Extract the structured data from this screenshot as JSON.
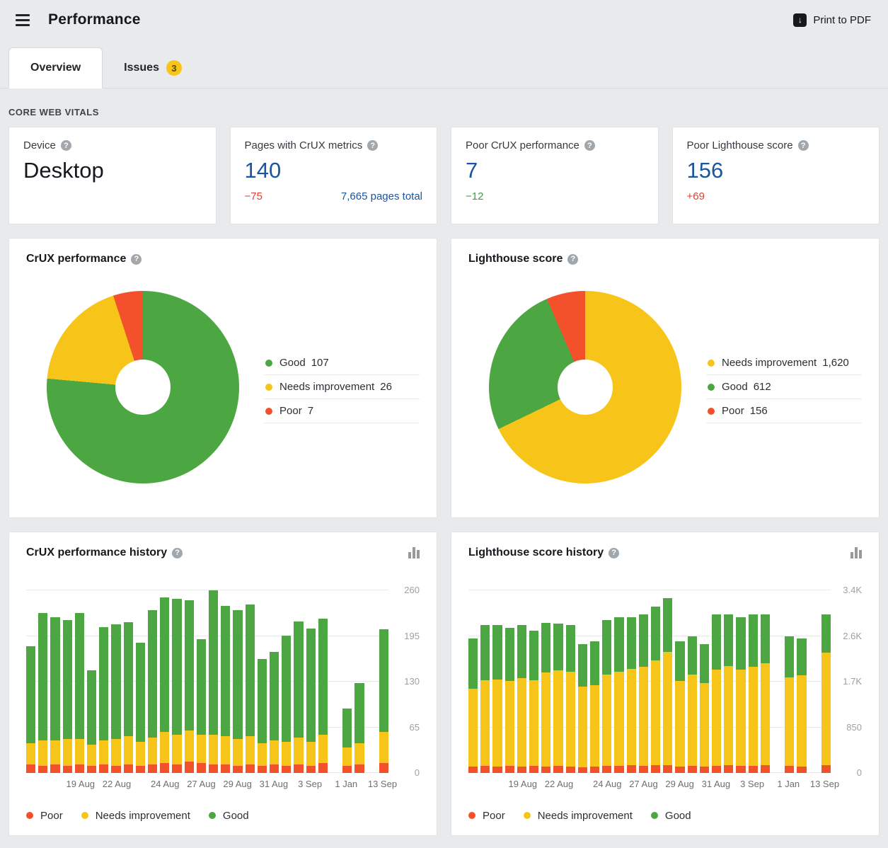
{
  "colors": {
    "good": "#4CA642",
    "ni": "#F7C519",
    "poor": "#F3512C",
    "blue": "#1A55A0",
    "delta_red": "#DD4236",
    "delta_green": "#3F9C43"
  },
  "icons": {
    "help": "?",
    "download_arrow": "↓"
  },
  "header": {
    "title": "Performance",
    "print_button": "Print to PDF"
  },
  "tabs": [
    {
      "label": "Overview",
      "active": true
    },
    {
      "label": "Issues",
      "badge": "3",
      "active": false
    }
  ],
  "section_label": "CORE WEB VITALS",
  "stat_cards": [
    {
      "label": "Device",
      "value": "Desktop"
    },
    {
      "label": "Pages with CrUX metrics",
      "value": "140",
      "delta": "−75",
      "delta_tone": "red",
      "link": "7,665 pages total"
    },
    {
      "label": "Poor CrUX performance",
      "value": "7",
      "delta": "−12",
      "delta_tone": "green"
    },
    {
      "label": "Poor Lighthouse score",
      "value": "156",
      "delta": "+69",
      "delta_tone": "red"
    }
  ],
  "chart_data": [
    {
      "type": "pie",
      "donut": true,
      "title": "CrUX performance",
      "start_angle_deg": 0,
      "direction": "clockwise",
      "slices": [
        {
          "label": "Good",
          "value": 107,
          "display": "107",
          "color_key": "good"
        },
        {
          "label": "Needs improvement",
          "value": 26,
          "display": "26",
          "color_key": "ni"
        },
        {
          "label": "Poor",
          "value": 7,
          "display": "7",
          "color_key": "poor"
        }
      ]
    },
    {
      "type": "pie",
      "donut": true,
      "title": "Lighthouse score",
      "start_angle_deg": 0,
      "direction": "clockwise",
      "slices": [
        {
          "label": "Needs improvement",
          "value": 1620,
          "display": "1,620",
          "color_key": "ni"
        },
        {
          "label": "Good",
          "value": 612,
          "display": "612",
          "color_key": "good"
        },
        {
          "label": "Poor",
          "value": 156,
          "display": "156",
          "color_key": "poor"
        }
      ]
    },
    {
      "type": "bar",
      "stacked": true,
      "title": "CrUX performance history",
      "ylim": [
        0,
        260
      ],
      "yticks": [
        {
          "value": 0,
          "label": "0"
        },
        {
          "value": 65,
          "label": "65"
        },
        {
          "value": 130,
          "label": "130"
        },
        {
          "value": 195,
          "label": "195"
        },
        {
          "value": 260,
          "label": "260"
        }
      ],
      "series_order": [
        {
          "name": "Poor",
          "color_key": "poor"
        },
        {
          "name": "Needs improvement",
          "color_key": "ni"
        },
        {
          "name": "Good",
          "color_key": "good"
        }
      ],
      "bars": [
        [
          12,
          30,
          138
        ],
        [
          10,
          36,
          182
        ],
        [
          12,
          34,
          176
        ],
        [
          10,
          38,
          170
        ],
        [
          12,
          36,
          180
        ],
        [
          10,
          30,
          106
        ],
        [
          12,
          34,
          162
        ],
        [
          10,
          38,
          164
        ],
        [
          12,
          40,
          163
        ],
        [
          10,
          34,
          141
        ],
        [
          12,
          38,
          182
        ],
        [
          14,
          44,
          192
        ],
        [
          12,
          42,
          194
        ],
        [
          16,
          44,
          186
        ],
        [
          14,
          40,
          136
        ],
        [
          12,
          42,
          206
        ],
        [
          12,
          40,
          186
        ],
        [
          10,
          38,
          184
        ],
        [
          12,
          40,
          188
        ],
        [
          10,
          32,
          120
        ],
        [
          12,
          34,
          126
        ],
        [
          10,
          34,
          152
        ],
        [
          12,
          38,
          166
        ],
        [
          10,
          34,
          162
        ],
        [
          14,
          40,
          166
        ],
        null,
        [
          10,
          26,
          56
        ],
        [
          12,
          30,
          86
        ],
        null,
        [
          14,
          44,
          147
        ]
      ],
      "x_labels": [
        {
          "text": "19 Aug",
          "slot": 4
        },
        {
          "text": "22 Aug",
          "slot": 7
        },
        {
          "text": "24 Aug",
          "slot": 11
        },
        {
          "text": "27 Aug",
          "slot": 14
        },
        {
          "text": "29 Aug",
          "slot": 17
        },
        {
          "text": "31 Aug",
          "slot": 20
        },
        {
          "text": "3 Sep",
          "slot": 23
        },
        {
          "text": "1 Jan",
          "slot": 26
        },
        {
          "text": "13 Sep",
          "slot": 29
        }
      ],
      "legend": [
        "Poor",
        "Needs improvement",
        "Good"
      ]
    },
    {
      "type": "bar",
      "stacked": true,
      "title": "Lighthouse score history",
      "ylim": [
        0,
        3400
      ],
      "yticks": [
        {
          "value": 0,
          "label": "0"
        },
        {
          "value": 850,
          "label": "850"
        },
        {
          "value": 1700,
          "label": "1.7K"
        },
        {
          "value": 2550,
          "label": "2.6K"
        },
        {
          "value": 3400,
          "label": "3.4K"
        }
      ],
      "series_order": [
        {
          "name": "Poor",
          "color_key": "poor"
        },
        {
          "name": "Needs improvement",
          "color_key": "ni"
        },
        {
          "name": "Good",
          "color_key": "good"
        }
      ],
      "bars": [
        [
          120,
          1450,
          930
        ],
        [
          130,
          1600,
          1020
        ],
        [
          120,
          1620,
          1010
        ],
        [
          130,
          1580,
          990
        ],
        [
          120,
          1650,
          980
        ],
        [
          130,
          1600,
          920
        ],
        [
          120,
          1750,
          930
        ],
        [
          130,
          1780,
          870
        ],
        [
          120,
          1760,
          880
        ],
        [
          110,
          1500,
          790
        ],
        [
          120,
          1520,
          810
        ],
        [
          130,
          1700,
          1020
        ],
        [
          130,
          1750,
          1020
        ],
        [
          140,
          1800,
          960
        ],
        [
          130,
          1850,
          970
        ],
        [
          140,
          1950,
          1010
        ],
        [
          150,
          2100,
          1000
        ],
        [
          120,
          1600,
          730
        ],
        [
          130,
          1700,
          720
        ],
        [
          120,
          1550,
          730
        ],
        [
          130,
          1800,
          1020
        ],
        [
          140,
          1850,
          960
        ],
        [
          130,
          1800,
          970
        ],
        [
          130,
          1850,
          970
        ],
        [
          140,
          1900,
          910
        ],
        null,
        [
          130,
          1650,
          770
        ],
        [
          120,
          1700,
          680
        ],
        null,
        [
          140,
          2100,
          710
        ]
      ],
      "x_labels": [
        {
          "text": "19 Aug",
          "slot": 4
        },
        {
          "text": "22 Aug",
          "slot": 7
        },
        {
          "text": "24 Aug",
          "slot": 11
        },
        {
          "text": "27 Aug",
          "slot": 14
        },
        {
          "text": "29 Aug",
          "slot": 17
        },
        {
          "text": "31 Aug",
          "slot": 20
        },
        {
          "text": "3 Sep",
          "slot": 23
        },
        {
          "text": "1 Jan",
          "slot": 26
        },
        {
          "text": "13 Sep",
          "slot": 29
        }
      ],
      "legend": [
        "Poor",
        "Needs improvement",
        "Good"
      ]
    }
  ]
}
